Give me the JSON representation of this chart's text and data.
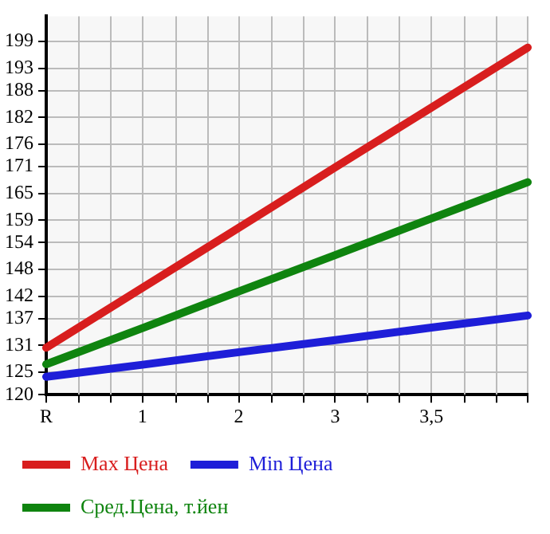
{
  "chart_data": {
    "type": "line",
    "categories": [
      "R",
      "1",
      "2",
      "3",
      "3,5",
      null
    ],
    "series": [
      {
        "name": "Max Цена",
        "color": "#d81e1e",
        "values": [
          130.5,
          143.9,
          157.3,
          170.8,
          184.2,
          197.6
        ]
      },
      {
        "name": "Min Цена",
        "color": "#1e1ed8",
        "values": [
          124.0,
          126.7,
          129.5,
          132.2,
          135.0,
          137.7
        ]
      },
      {
        "name": "Сред.Цена, т.йен",
        "color": "#0f840f",
        "values": [
          126.8,
          134.9,
          143.1,
          151.2,
          159.4,
          167.5
        ]
      }
    ],
    "ylim": [
      120,
      204.6
    ],
    "yticks": [
      120,
      125,
      131,
      137,
      142,
      148,
      154,
      159,
      165,
      171,
      176,
      182,
      188,
      193,
      199
    ],
    "grid": true,
    "legend": "bottom",
    "marker": "none",
    "line_style": "solid"
  }
}
